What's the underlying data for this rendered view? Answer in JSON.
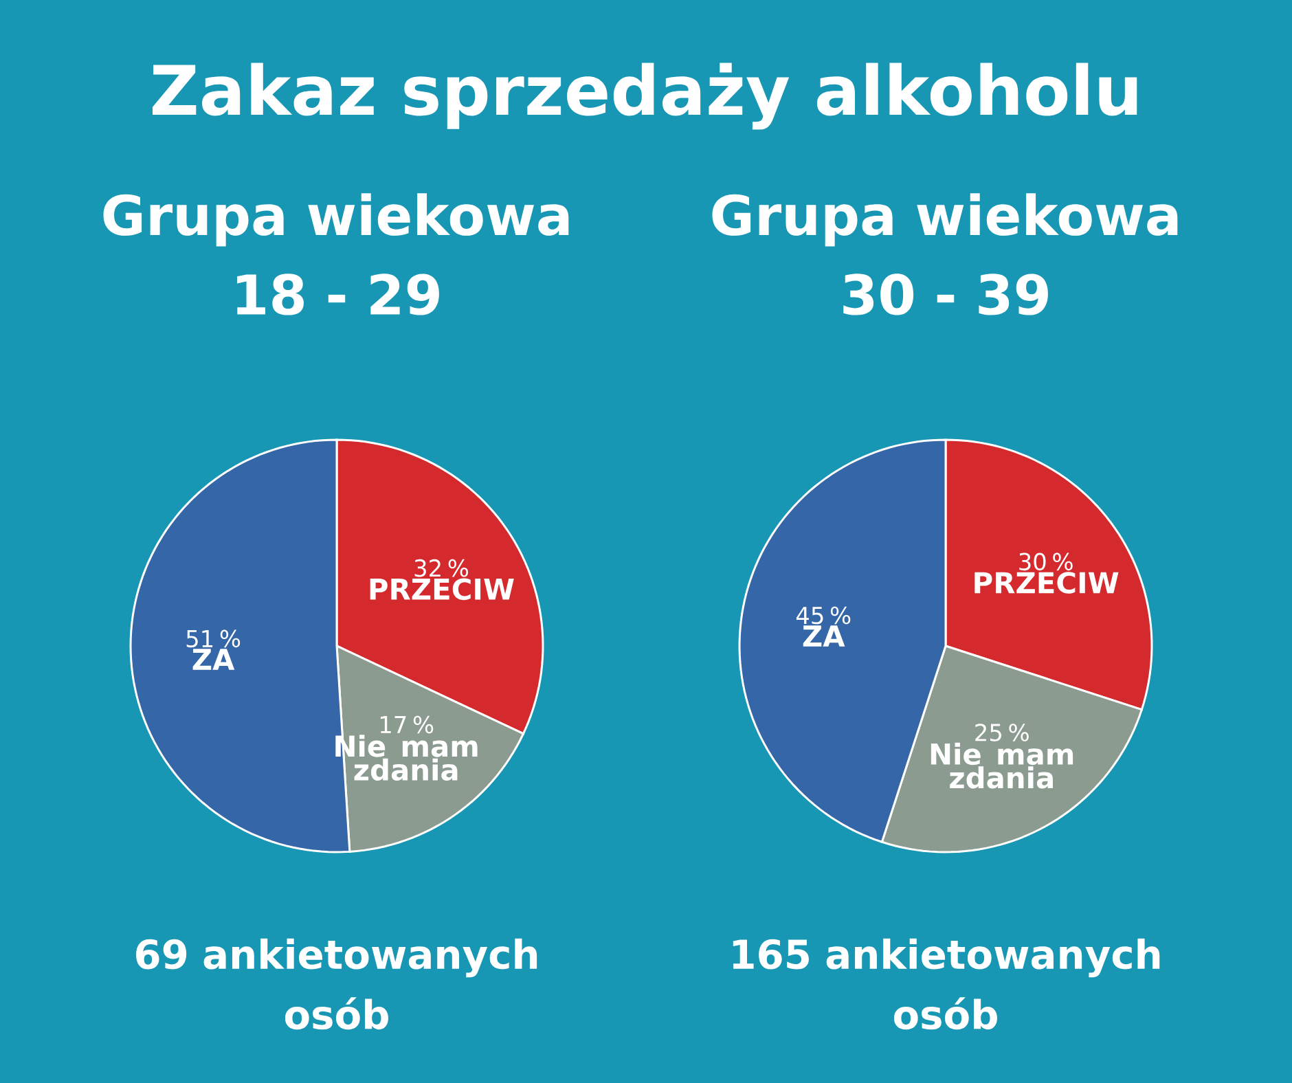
{
  "chart_data": [
    {
      "type": "pie",
      "title": "Zakaz sprzedaży alkoholu",
      "subtitle": "Grupa wiekowa\n18 - 29",
      "categories": [
        "PRZECIW",
        "Nie mam zdania",
        "ZA"
      ],
      "values": [
        32,
        17,
        51
      ],
      "value_labels": [
        "32 %",
        "17 %",
        "51 %"
      ],
      "colors": [
        "#d42a2e",
        "#8c9b8f",
        "#3466a8"
      ],
      "annotations": [
        "69 ankietowanych osób"
      ]
    },
    {
      "type": "pie",
      "subtitle": "Grupa wiekowa\n30 - 39",
      "categories": [
        "PRZECIW",
        "Nie mam zdania",
        "ZA"
      ],
      "values": [
        30,
        25,
        45
      ],
      "value_labels": [
        "30 %",
        "25 %",
        "45 %"
      ],
      "colors": [
        "#d42a2e",
        "#8c9b8f",
        "#3466a8"
      ],
      "annotations": [
        "165 ankietowanych osób"
      ]
    }
  ]
}
